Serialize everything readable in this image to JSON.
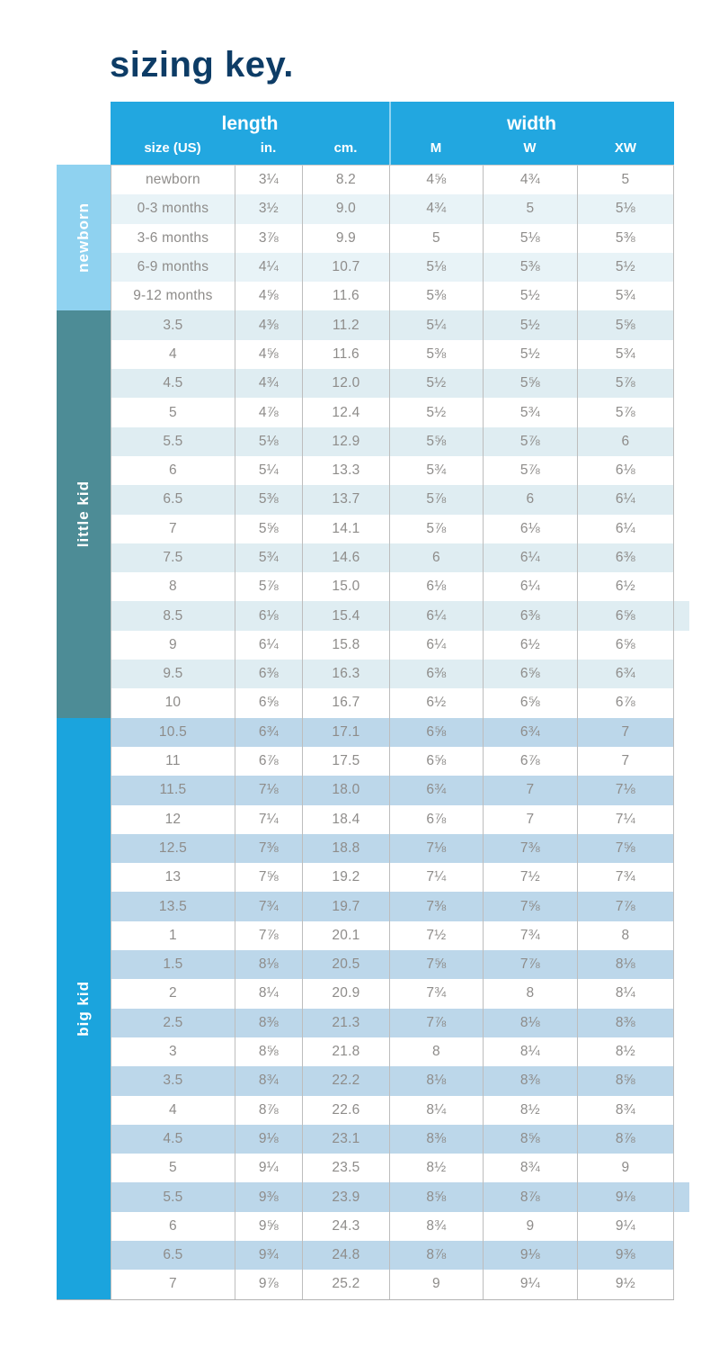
{
  "title": "sizing key.",
  "colors": {
    "title": "#0d3c66",
    "header_bg": "#22a7e0",
    "text": "#8e8c8a",
    "newborn_sidebar": "#8fd2f0",
    "little_kid_sidebar": "#4d8c96",
    "big_kid_sidebar": "#1ba4dd",
    "newborn_stripe": "#e8f3f7",
    "little_kid_stripe": "#dfedf2",
    "big_kid_stripe": "#bcd7ea"
  },
  "chart_data": {
    "type": "table",
    "title": "sizing key.",
    "column_groups": [
      {
        "label": "length",
        "columns": [
          "size (US)",
          "in.",
          "cm."
        ]
      },
      {
        "label": "width",
        "columns": [
          "M",
          "W",
          "XW"
        ]
      }
    ],
    "sections": [
      {
        "label": "newborn",
        "sidebar_color": "#8fd2f0",
        "stripe_color": "#e8f3f7",
        "stripe_start": "second",
        "extended_stripe_rows": [],
        "rows": [
          [
            "newborn",
            "3¼",
            "8.2",
            "4⅝",
            "4¾",
            "5"
          ],
          [
            "0-3 months",
            "3½",
            "9.0",
            "4¾",
            "5",
            "5⅛"
          ],
          [
            "3-6 months",
            "3⅞",
            "9.9",
            "5",
            "5⅛",
            "5⅜"
          ],
          [
            "6-9 months",
            "4¼",
            "10.7",
            "5⅛",
            "5⅜",
            "5½"
          ],
          [
            "9-12 months",
            "4⅝",
            "11.6",
            "5⅜",
            "5½",
            "5¾"
          ]
        ]
      },
      {
        "label": "little kid",
        "sidebar_color": "#4d8c96",
        "stripe_color": "#dfedf2",
        "stripe_start": "first",
        "extended_stripe_rows": [
          "8.5"
        ],
        "rows": [
          [
            "3.5",
            "4⅜",
            "11.2",
            "5¼",
            "5½",
            "5⅝"
          ],
          [
            "4",
            "4⅝",
            "11.6",
            "5⅜",
            "5½",
            "5¾"
          ],
          [
            "4.5",
            "4¾",
            "12.0",
            "5½",
            "5⅝",
            "5⅞"
          ],
          [
            "5",
            "4⅞",
            "12.4",
            "5½",
            "5¾",
            "5⅞"
          ],
          [
            "5.5",
            "5⅛",
            "12.9",
            "5⅝",
            "5⅞",
            "6"
          ],
          [
            "6",
            "5¼",
            "13.3",
            "5¾",
            "5⅞",
            "6⅛"
          ],
          [
            "6.5",
            "5⅜",
            "13.7",
            "5⅞",
            "6",
            "6¼"
          ],
          [
            "7",
            "5⅝",
            "14.1",
            "5⅞",
            "6⅛",
            "6¼"
          ],
          [
            "7.5",
            "5¾",
            "14.6",
            "6",
            "6¼",
            "6⅜"
          ],
          [
            "8",
            "5⅞",
            "15.0",
            "6⅛",
            "6¼",
            "6½"
          ],
          [
            "8.5",
            "6⅛",
            "15.4",
            "6¼",
            "6⅜",
            "6⅝"
          ],
          [
            "9",
            "6¼",
            "15.8",
            "6¼",
            "6½",
            "6⅝"
          ],
          [
            "9.5",
            "6⅜",
            "16.3",
            "6⅜",
            "6⅝",
            "6¾"
          ],
          [
            "10",
            "6⅝",
            "16.7",
            "6½",
            "6⅝",
            "6⅞"
          ]
        ]
      },
      {
        "label": "big kid",
        "sidebar_color": "#1ba4dd",
        "stripe_color": "#bcd7ea",
        "stripe_start": "first",
        "extended_stripe_rows": [
          "5.5"
        ],
        "rows": [
          [
            "10.5",
            "6¾",
            "17.1",
            "6⅝",
            "6¾",
            "7"
          ],
          [
            "11",
            "6⅞",
            "17.5",
            "6⅝",
            "6⅞",
            "7"
          ],
          [
            "11.5",
            "7⅛",
            "18.0",
            "6¾",
            "7",
            "7⅛"
          ],
          [
            "12",
            "7¼",
            "18.4",
            "6⅞",
            "7",
            "7¼"
          ],
          [
            "12.5",
            "7⅜",
            "18.8",
            "7⅛",
            "7⅜",
            "7⅝"
          ],
          [
            "13",
            "7⅝",
            "19.2",
            "7¼",
            "7½",
            "7¾"
          ],
          [
            "13.5",
            "7¾",
            "19.7",
            "7⅜",
            "7⅝",
            "7⅞"
          ],
          [
            "1",
            "7⅞",
            "20.1",
            "7½",
            "7¾",
            "8"
          ],
          [
            "1.5",
            "8⅛",
            "20.5",
            "7⅝",
            "7⅞",
            "8⅛"
          ],
          [
            "2",
            "8¼",
            "20.9",
            "7¾",
            "8",
            "8¼"
          ],
          [
            "2.5",
            "8⅜",
            "21.3",
            "7⅞",
            "8⅛",
            "8⅜"
          ],
          [
            "3",
            "8⅝",
            "21.8",
            "8",
            "8¼",
            "8½"
          ],
          [
            "3.5",
            "8¾",
            "22.2",
            "8⅛",
            "8⅜",
            "8⅝"
          ],
          [
            "4",
            "8⅞",
            "22.6",
            "8¼",
            "8½",
            "8¾"
          ],
          [
            "4.5",
            "9⅛",
            "23.1",
            "8⅜",
            "8⅝",
            "8⅞"
          ],
          [
            "5",
            "9¼",
            "23.5",
            "8½",
            "8¾",
            "9"
          ],
          [
            "5.5",
            "9⅜",
            "23.9",
            "8⅝",
            "8⅞",
            "9⅛"
          ],
          [
            "6",
            "9⅝",
            "24.3",
            "8¾",
            "9",
            "9¼"
          ],
          [
            "6.5",
            "9¾",
            "24.8",
            "8⅞",
            "9⅛",
            "9⅜"
          ],
          [
            "7",
            "9⅞",
            "25.2",
            "9",
            "9¼",
            "9½"
          ]
        ]
      }
    ]
  }
}
